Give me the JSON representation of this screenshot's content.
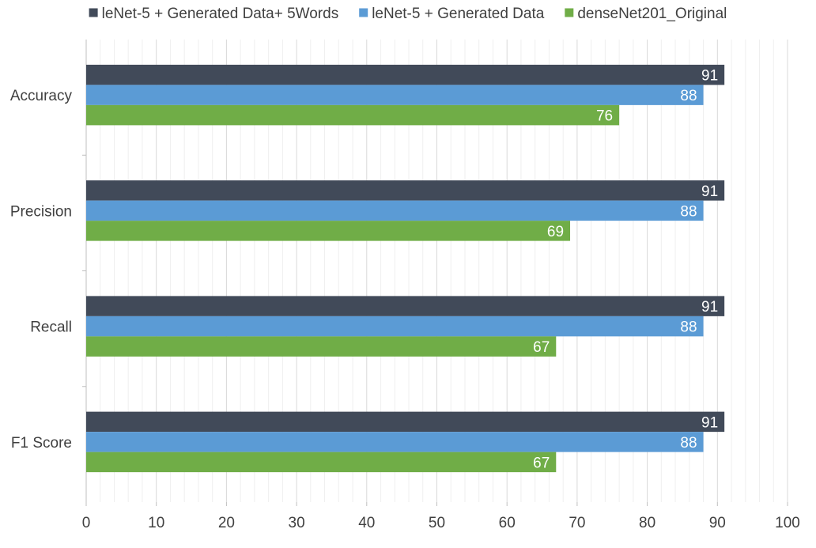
{
  "chart_data": {
    "type": "bar",
    "orientation": "horizontal",
    "title": "",
    "xlabel": "",
    "ylabel": "",
    "xlim": [
      0,
      100
    ],
    "major_ticks": [
      0,
      10,
      20,
      30,
      40,
      50,
      60,
      70,
      80,
      90,
      100
    ],
    "minor_tick_step": 2,
    "grid": true,
    "legend_position": "top",
    "data_labels": true,
    "categories": [
      "Accuracy",
      "Precision",
      "Recall",
      "F1 Score"
    ],
    "series": [
      {
        "name": "leNet-5 + Generated Data+ 5Words",
        "color": "#414A59",
        "values": [
          91,
          91,
          91,
          91
        ]
      },
      {
        "name": "leNet-5 + Generated Data",
        "color": "#5B9BD5",
        "values": [
          88,
          88,
          88,
          88
        ]
      },
      {
        "name": "denseNet201_Original",
        "color": "#70AD47",
        "values": [
          76,
          69,
          67,
          67
        ]
      }
    ]
  }
}
